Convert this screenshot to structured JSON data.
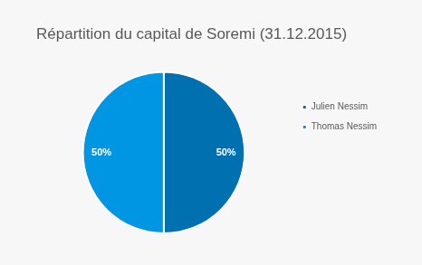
{
  "chart_data": {
    "type": "pie",
    "title": "Répartition du capital de Soremi (31.12.2015)",
    "categories": [
      "Julien Nessim",
      "Thomas Nessim"
    ],
    "values": [
      50,
      50
    ],
    "value_labels": [
      "50%",
      "50%"
    ],
    "colors": [
      "#0070b0",
      "#0096e4"
    ],
    "data_labels": true,
    "legend": "right"
  }
}
